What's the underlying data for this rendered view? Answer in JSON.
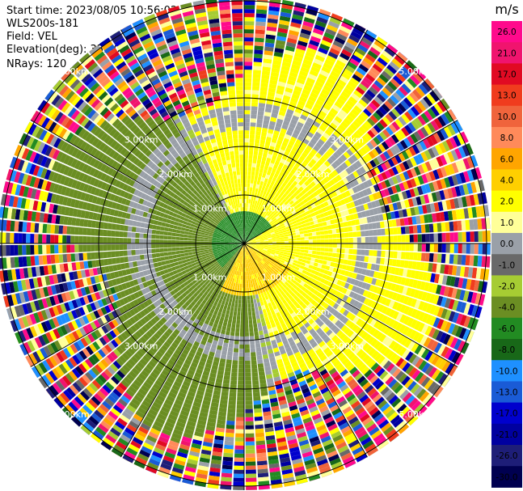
{
  "header": {
    "start_time": "Start time: 2023/08/05 10:56:02",
    "instrument": "WLS200s-181",
    "field": "Field: VEL",
    "elevation": "Elevation(deg): 35.30",
    "nrays": "NRays: 120"
  },
  "chart_data": {
    "type": "heatmap",
    "projection": "polar PPI",
    "field": "VEL",
    "nrays": 120,
    "range_rings_km": [
      1.0,
      2.0,
      3.0,
      5.0
    ],
    "range_ring_labels": [
      "1.00km",
      "2.00km",
      "3.00km",
      "5.00km"
    ],
    "colorbar": {
      "unit": "m/s",
      "ticks": [
        "26.0",
        "21.0",
        "17.0",
        "13.0",
        "10.0",
        "8.0",
        "6.0",
        "4.0",
        "2.0",
        "1.0",
        "0.0",
        "-1.0",
        "-2.0",
        "-4.0",
        "-6.0",
        "-8.0",
        "-10.0",
        "-13.0",
        "-17.0",
        "-21.0",
        "-26.0",
        "-30.0"
      ],
      "colors": [
        "#ff0a8c",
        "#f0146e",
        "#e10a23",
        "#f03c1e",
        "#f0643c",
        "#ff8a5a",
        "#ffa500",
        "#ffcf00",
        "#ffff00",
        "#ffff99",
        "#9aa0a8",
        "#696969",
        "#a6cc33",
        "#6b8e23",
        "#228b22",
        "#186818",
        "#1e90ff",
        "#1a5bd6",
        "#0000cd",
        "#0000a0",
        "#1e1e78",
        "#000050"
      ]
    },
    "pattern_summary": [
      {
        "region": "inner disk r<0.6km",
        "value_ms": -6.0
      },
      {
        "region": "north/east sector 1-3km",
        "value_ms": 2.0
      },
      {
        "region": "south sector 0.5-1km",
        "value_ms": 4.0
      },
      {
        "region": "west sector 1-3km",
        "value_ms": -2.0
      },
      {
        "region": "ring ~2.5km",
        "value_ms": 0.0
      },
      {
        "region": "outer ring >3.5km",
        "value_ms": "noise"
      }
    ]
  }
}
